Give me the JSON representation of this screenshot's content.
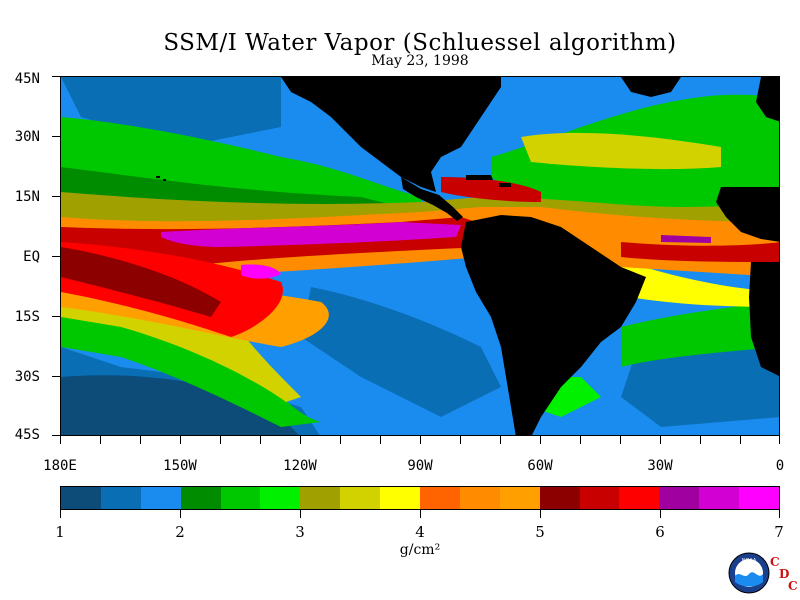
{
  "title": "SSM/I Water Vapor (Schluessel algorithm)",
  "subtitle": "May 23, 1998",
  "map": {
    "lat_labels": [
      "45N",
      "30N",
      "15N",
      "EQ",
      "15S",
      "30S",
      "45S"
    ],
    "lon_labels": [
      "180E",
      "150W",
      "120W",
      "90W",
      "60W",
      "30W",
      "0"
    ],
    "lat_range": [
      -45,
      45
    ],
    "lon_range": [
      -180,
      0
    ],
    "land_color": "#000000"
  },
  "colorbar": {
    "labels": [
      "1",
      "2",
      "3",
      "4",
      "5",
      "6",
      "7"
    ],
    "range": [
      1,
      7
    ],
    "units": "g/cm²",
    "colors": [
      "#0d4b78",
      "#0a6eb4",
      "#1a8cf0",
      "#008c00",
      "#00c800",
      "#00f000",
      "#a0a000",
      "#d2d200",
      "#ffff00",
      "#ff6400",
      "#ff8c00",
      "#ffa000",
      "#8c0000",
      "#c80000",
      "#ff0000",
      "#a000a0",
      "#d200d2",
      "#ff00ff"
    ]
  },
  "logos": {
    "noaa_text": "NOAA",
    "cdc_letters": [
      "C",
      "D",
      "C"
    ]
  }
}
